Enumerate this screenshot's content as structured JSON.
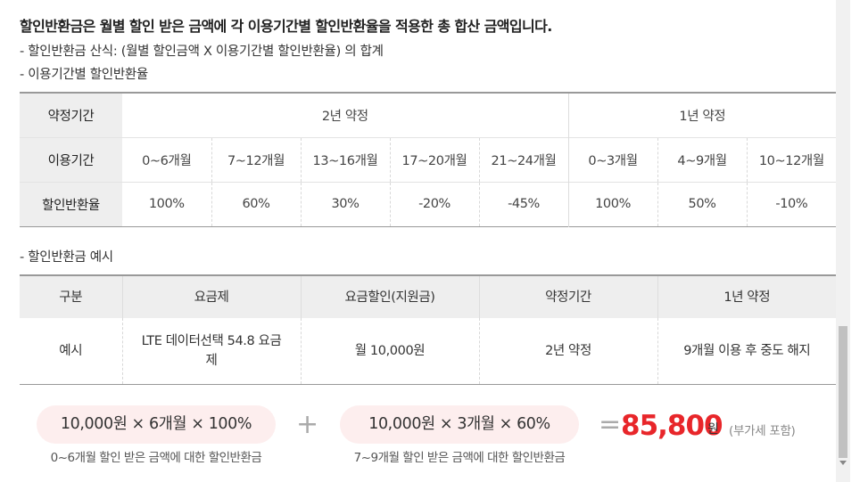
{
  "intro": {
    "headline": "할인반환금은 월별 할인 받은 금액에 각 이용기간별 할인반환율을 적용한 총 합산 금액입니다.",
    "formula_line": "- 할인반환금 산식: (월별 할인금액 X 이용기간별 할인반환율) 의 합계",
    "rate_title": "- 이용기간별 할인반환율"
  },
  "rate_table": {
    "row_headers": [
      "약정기간",
      "이용기간",
      "할인반환율"
    ],
    "contract_2yr": "2년 약정",
    "contract_1yr": "1년 약정",
    "periods": [
      "0~6개월",
      "7~12개월",
      "13~16개월",
      "17~20개월",
      "21~24개월",
      "0~3개월",
      "4~9개월",
      "10~12개월"
    ],
    "rates": [
      "100%",
      "60%",
      "30%",
      "-20%",
      "-45%",
      "100%",
      "50%",
      "-10%"
    ]
  },
  "example": {
    "title": "- 할인반환금 예시",
    "headers": [
      "구분",
      "요금제",
      "요금할인(지원금)",
      "약정기간",
      "1년 약정"
    ],
    "row": [
      "예시",
      "LTE 데이터선택 54.8 요금제",
      "월 10,000원",
      "2년 약정",
      "9개월 이용 후 중도 해지"
    ]
  },
  "calc": {
    "term1": "10,000원 × 6개월 × 100%",
    "term1_caption": "0~6개월 할인 받은 금액에 대한 할인반환금",
    "plus": "+",
    "term2": "10,000원 × 3개월 × 60%",
    "term2_caption": "7~9개월 할인 받은 금액에 대한 할인반환금",
    "equals": "=",
    "total": "85,800",
    "unit": "원",
    "vat_note": "(부가세 포함)"
  },
  "colors": {
    "accent_red": "#e8262a",
    "pill_bg": "#fdeeee",
    "header_bg": "#eeeeee"
  }
}
